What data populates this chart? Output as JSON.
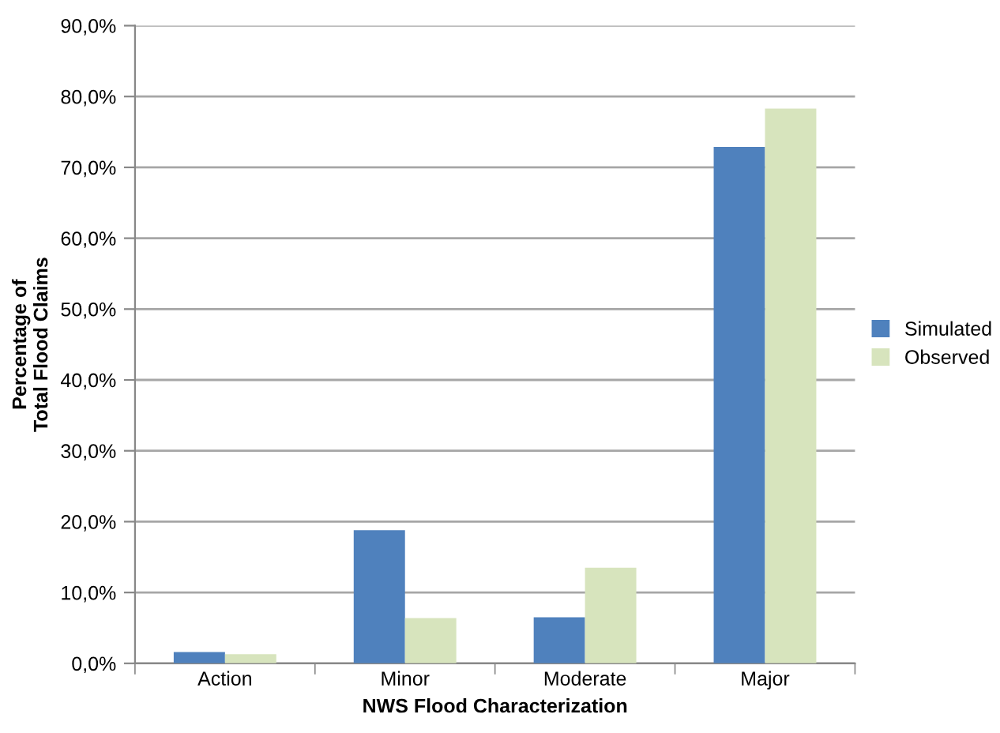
{
  "chart_data": {
    "type": "bar",
    "xlabel": "NWS Flood Characterization",
    "ylabel": "Percentage of\nTotal Flood Claims",
    "categories": [
      "Action",
      "Minor",
      "Moderate",
      "Major"
    ],
    "series": [
      {
        "name": "Simulated",
        "color": "#4f81bd",
        "values": [
          1.6,
          18.8,
          6.5,
          72.9
        ]
      },
      {
        "name": "Observed",
        "color": "#d7e4bd",
        "values": [
          1.3,
          6.4,
          13.5,
          78.3
        ]
      }
    ],
    "ylim": [
      0,
      90
    ],
    "yticks": [
      {
        "value": 0,
        "label": "0,0%"
      },
      {
        "value": 10,
        "label": "10,0%"
      },
      {
        "value": 20,
        "label": "20,0%"
      },
      {
        "value": 30,
        "label": "30,0%"
      },
      {
        "value": 40,
        "label": "40,0%"
      },
      {
        "value": 50,
        "label": "50,0%"
      },
      {
        "value": 60,
        "label": "60,0%"
      },
      {
        "value": 70,
        "label": "70,0%"
      },
      {
        "value": 80,
        "label": "80,0%"
      },
      {
        "value": 90,
        "label": "90,0%"
      }
    ],
    "grid": "y",
    "legend": "right"
  }
}
